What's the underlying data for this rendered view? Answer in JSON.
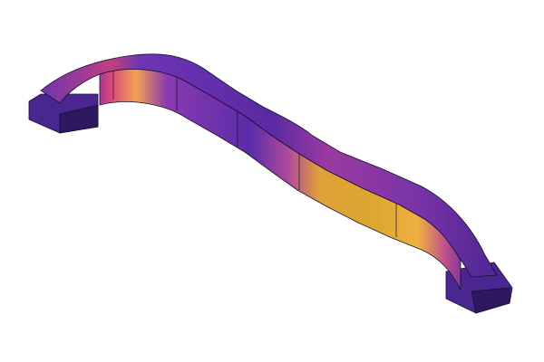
{
  "scene": {
    "subject": "bracket-part-render",
    "colormap": "plasma",
    "colors": {
      "background": "#ffffff",
      "top_face": "#6a34b4",
      "dark_face": "#3b1e7a",
      "low": "#5a2ca8",
      "mid_pink": "#d9457a",
      "mid_orange": "#f08a4a",
      "high": "#e0b030",
      "outline": "#1a0f2e"
    }
  }
}
